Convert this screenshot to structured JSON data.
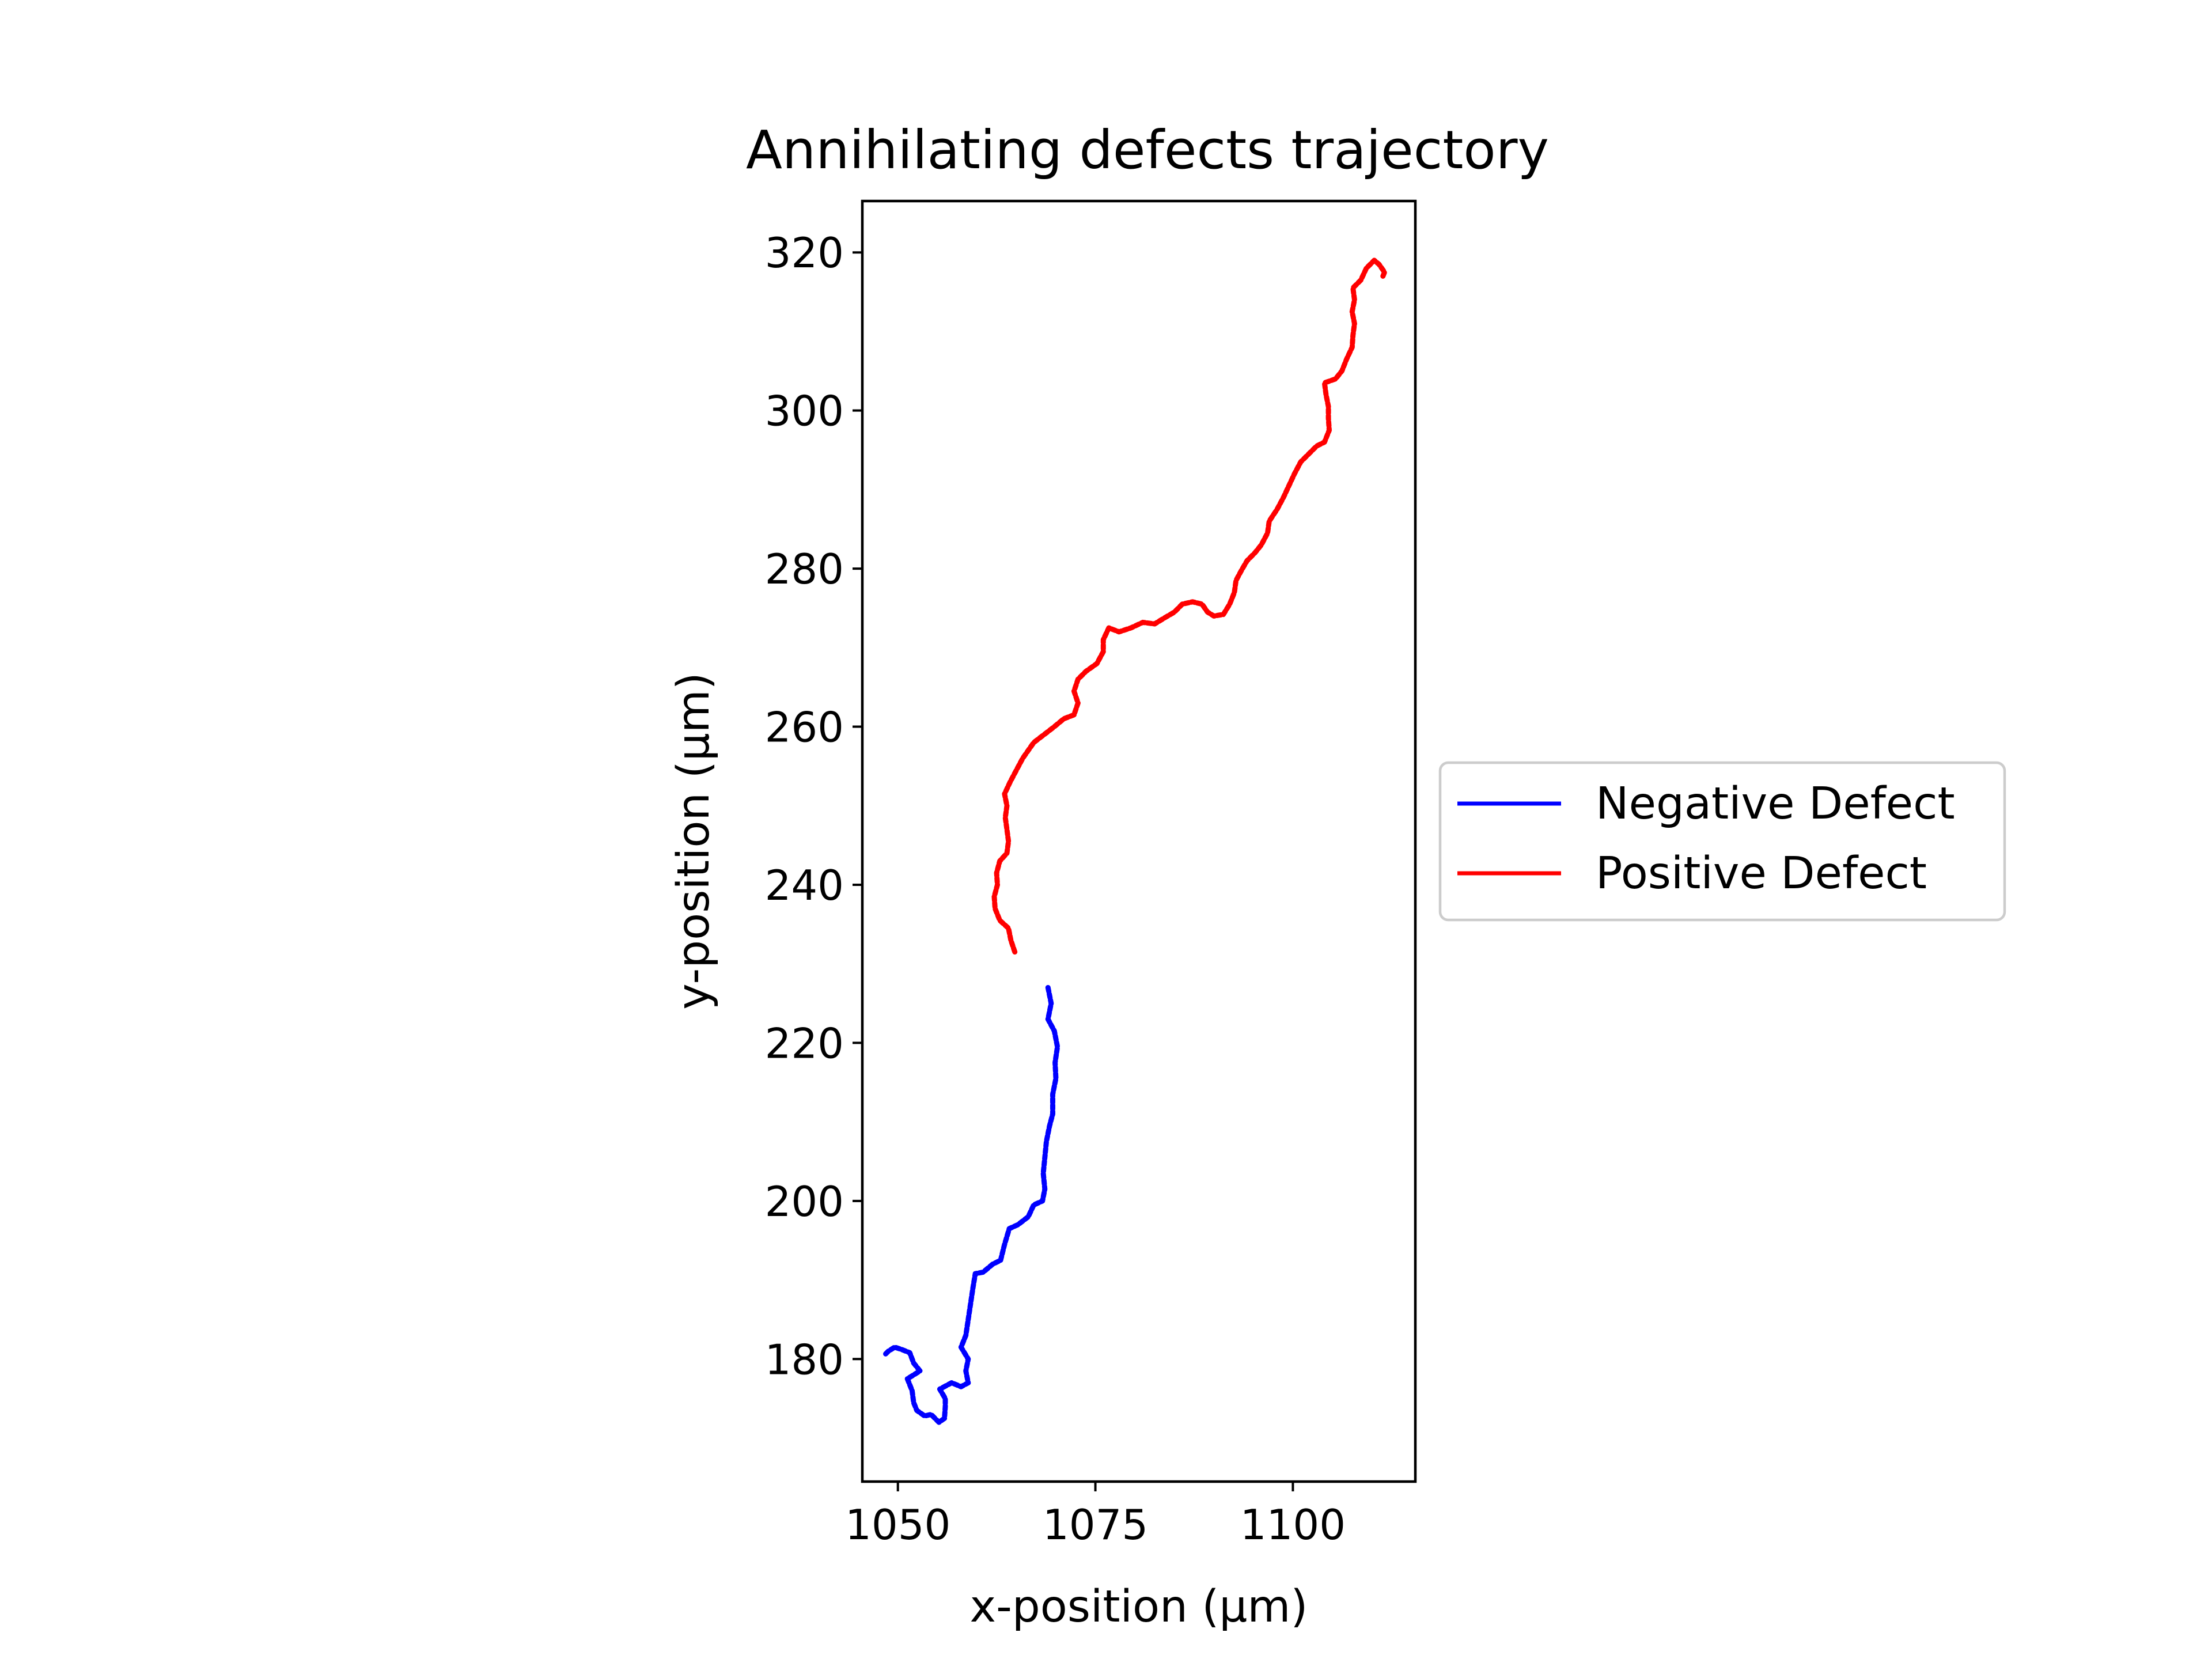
{
  "chart_data": {
    "type": "line",
    "title": "Annihilating defects trajectory",
    "xlabel": "x-position (µm)",
    "ylabel": "y-position (µm)",
    "xlim": [
      1045.5,
      1115.5
    ],
    "ylim": [
      164.5,
      326.5
    ],
    "xticks": [
      1050,
      1075,
      1100
    ],
    "yticks": [
      180,
      200,
      220,
      240,
      260,
      280,
      300,
      320
    ],
    "grid": false,
    "legend_position": "right-outside",
    "series": [
      {
        "name": "Negative Defect",
        "color": "#0000ff",
        "points": [
          [
            69.0,
            227.0
          ],
          [
            69.4,
            225.0
          ],
          [
            69.0,
            223.0
          ],
          [
            69.8,
            221.5
          ],
          [
            70.2,
            219.5
          ],
          [
            69.9,
            217.5
          ],
          [
            70.0,
            215.5
          ],
          [
            69.6,
            213.5
          ],
          [
            69.6,
            211.0
          ],
          [
            69.2,
            209.5
          ],
          [
            68.8,
            207.5
          ],
          [
            68.6,
            205.5
          ],
          [
            68.4,
            203.5
          ],
          [
            68.6,
            201.5
          ],
          [
            68.3,
            200.0
          ],
          [
            67.2,
            199.5
          ],
          [
            66.5,
            198.0
          ],
          [
            65.2,
            197.0
          ],
          [
            64.1,
            196.5
          ],
          [
            63.5,
            194.5
          ],
          [
            63.0,
            192.5
          ],
          [
            62.0,
            192.0
          ],
          [
            60.8,
            191.0
          ],
          [
            59.8,
            190.8
          ],
          [
            59.5,
            189.0
          ],
          [
            59.2,
            187.0
          ],
          [
            58.9,
            185.0
          ],
          [
            58.6,
            183.0
          ],
          [
            58.0,
            181.5
          ],
          [
            58.9,
            180.0
          ],
          [
            58.6,
            178.5
          ],
          [
            58.9,
            177.0
          ],
          [
            58.0,
            176.5
          ],
          [
            56.8,
            177.0
          ],
          [
            55.3,
            176.2
          ],
          [
            56.0,
            175.0
          ],
          [
            56.0,
            174.0
          ],
          [
            55.9,
            172.5
          ],
          [
            55.2,
            172.0
          ],
          [
            54.2,
            173.0
          ],
          [
            53.4,
            172.8
          ],
          [
            52.4,
            173.5
          ],
          [
            52.0,
            174.5
          ],
          [
            51.8,
            176.0
          ],
          [
            51.2,
            177.5
          ],
          [
            52.8,
            178.5
          ],
          [
            52.0,
            179.5
          ],
          [
            51.5,
            180.8
          ],
          [
            50.5,
            181.2
          ],
          [
            49.6,
            181.5
          ],
          [
            48.8,
            181.0
          ],
          [
            48.3,
            180.5
          ]
        ]
      },
      {
        "name": "Positive Defect",
        "color": "#ff0000",
        "points": [
          [
            64.8,
            231.5
          ],
          [
            64.3,
            233.0
          ],
          [
            64.0,
            234.5
          ],
          [
            62.9,
            235.5
          ],
          [
            62.3,
            237.0
          ],
          [
            62.2,
            238.5
          ],
          [
            62.6,
            240.0
          ],
          [
            62.5,
            241.5
          ],
          [
            62.9,
            243.0
          ],
          [
            63.8,
            244.0
          ],
          [
            64.0,
            245.5
          ],
          [
            63.8,
            247.0
          ],
          [
            63.6,
            248.5
          ],
          [
            63.8,
            250.0
          ],
          [
            63.5,
            251.5
          ],
          [
            64.2,
            253.0
          ],
          [
            65.0,
            254.5
          ],
          [
            65.8,
            256.0
          ],
          [
            66.5,
            257.0
          ],
          [
            67.2,
            258.0
          ],
          [
            68.5,
            259.0
          ],
          [
            69.8,
            260.0
          ],
          [
            71.0,
            261.0
          ],
          [
            72.3,
            261.5
          ],
          [
            72.8,
            263.0
          ],
          [
            72.3,
            264.5
          ],
          [
            72.8,
            266.0
          ],
          [
            73.8,
            267.0
          ],
          [
            75.2,
            268.0
          ],
          [
            76.0,
            269.5
          ],
          [
            76.0,
            271.0
          ],
          [
            76.7,
            272.5
          ],
          [
            78.0,
            272.0
          ],
          [
            79.5,
            272.5
          ],
          [
            81.0,
            273.2
          ],
          [
            82.5,
            273.0
          ],
          [
            83.8,
            273.8
          ],
          [
            85.0,
            274.5
          ],
          [
            86.0,
            275.5
          ],
          [
            87.3,
            275.8
          ],
          [
            88.5,
            275.5
          ],
          [
            89.2,
            274.5
          ],
          [
            90.0,
            274.0
          ],
          [
            91.2,
            274.2
          ],
          [
            92.0,
            275.5
          ],
          [
            92.6,
            277.0
          ],
          [
            92.8,
            278.5
          ],
          [
            93.5,
            279.8
          ],
          [
            94.2,
            281.0
          ],
          [
            95.2,
            282.0
          ],
          [
            96.0,
            283.0
          ],
          [
            96.8,
            284.5
          ],
          [
            97.0,
            286.0
          ],
          [
            98.0,
            287.5
          ],
          [
            98.8,
            289.0
          ],
          [
            99.5,
            290.5
          ],
          [
            100.2,
            292.0
          ],
          [
            101.0,
            293.5
          ],
          [
            102.0,
            294.5
          ],
          [
            103.0,
            295.5
          ],
          [
            104.0,
            296.0
          ],
          [
            104.6,
            297.5
          ],
          [
            104.5,
            299.0
          ],
          [
            104.5,
            300.5
          ],
          [
            104.2,
            302.0
          ],
          [
            104.0,
            303.5
          ],
          [
            105.4,
            304.0
          ],
          [
            106.2,
            305.0
          ],
          [
            106.8,
            306.5
          ],
          [
            107.5,
            308.0
          ],
          [
            107.6,
            309.5
          ],
          [
            107.8,
            311.0
          ],
          [
            107.5,
            312.5
          ],
          [
            107.8,
            314.0
          ],
          [
            107.6,
            315.5
          ],
          [
            108.6,
            316.5
          ],
          [
            109.3,
            318.0
          ],
          [
            110.3,
            319.0
          ],
          [
            110.9,
            318.5
          ],
          [
            111.6,
            317.5
          ],
          [
            111.4,
            317.0
          ]
        ],
        "x_offset": 1000
      }
    ],
    "legend": [
      "Negative Defect",
      "Positive Defect"
    ]
  }
}
